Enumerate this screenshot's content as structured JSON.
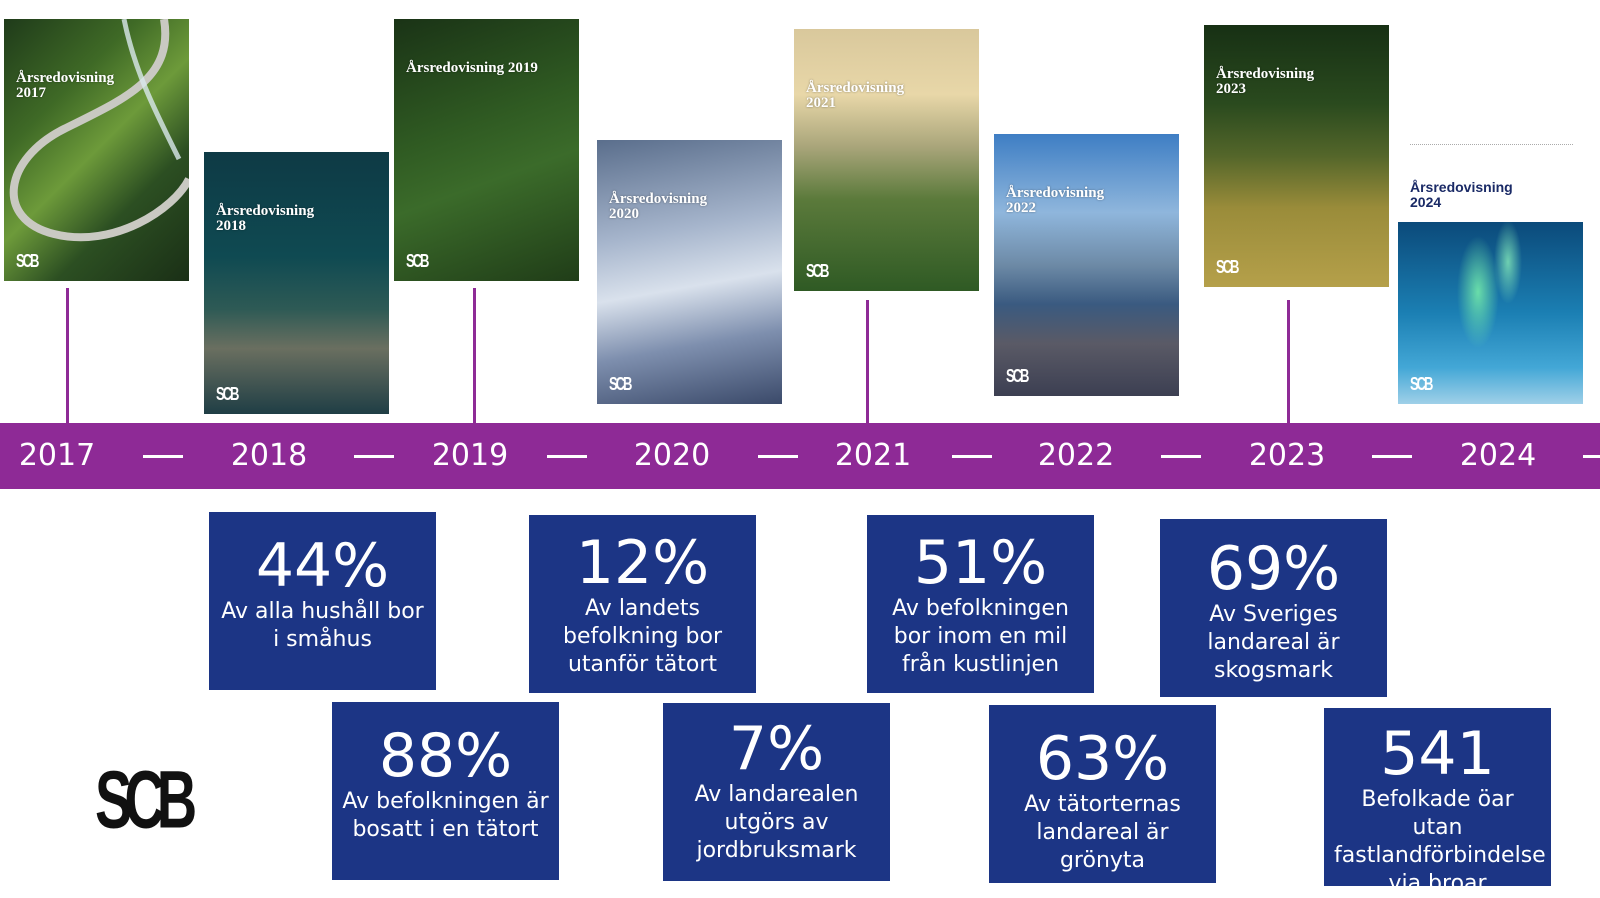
{
  "covers": [
    {
      "title": "Årsredovisning\n2017",
      "logo": "SCB"
    },
    {
      "title": "Årsredovisning\n2018",
      "logo": "SCB"
    },
    {
      "title": "Årsredovisning 2019",
      "logo": "SCB"
    },
    {
      "title": "Årsredovisning\n2020",
      "logo": "SCB"
    },
    {
      "title": "Årsredovisning\n2021",
      "logo": "SCB"
    },
    {
      "title": "Årsredovisning\n2022",
      "logo": "SCB"
    },
    {
      "title": "Årsredovisning\n2023",
      "logo": "SCB"
    },
    {
      "title": "Årsredovisning\n2024",
      "logo": "SCB"
    }
  ],
  "years": [
    "2017",
    "2018",
    "2019",
    "2020",
    "2021",
    "2022",
    "2023",
    "2024"
  ],
  "stats": [
    {
      "value": "44%",
      "text": "Av alla hushåll bor i småhus"
    },
    {
      "value": "88%",
      "text": "Av befolkningen är bosatt i en tätort"
    },
    {
      "value": "12%",
      "text": "Av landets befolkning bor utanför tätort"
    },
    {
      "value": "7%",
      "text": "Av landarealen utgörs av jordbruksmark"
    },
    {
      "value": "51%",
      "text": "Av befolkningen bor inom en mil från kustlinjen"
    },
    {
      "value": "63%",
      "text": "Av tätorternas landareal är grönyta"
    },
    {
      "value": "69%",
      "text": "Av Sveriges landareal är skogsmark"
    },
    {
      "value": "541",
      "text": "Befolkade öar utan fastlandförbindelse via broar"
    }
  ],
  "logo": "SCB",
  "colors": {
    "band": "#8e2a96",
    "stat_box": "#1c3585"
  }
}
